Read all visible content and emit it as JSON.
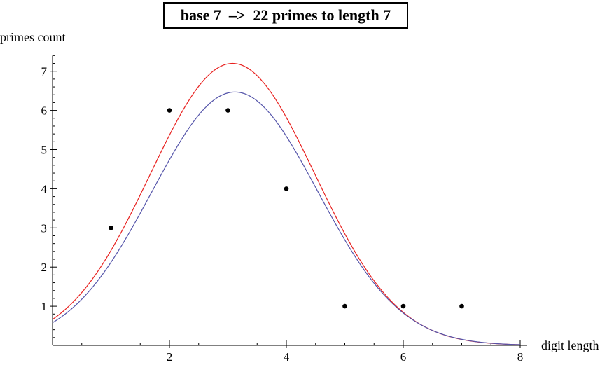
{
  "chart_data": {
    "type": "scatter",
    "title": "base 7  –>  22 primes to length 7",
    "xlabel": "digit length",
    "ylabel": "primes count",
    "xlim": [
      0,
      8
    ],
    "ylim": [
      0,
      7.4
    ],
    "x_ticks": [
      "2",
      "4",
      "6",
      "8"
    ],
    "y_ticks": [
      "1",
      "2",
      "3",
      "4",
      "5",
      "6",
      "7"
    ],
    "grid": false,
    "points": [
      {
        "x": 1,
        "y": 3
      },
      {
        "x": 2,
        "y": 6
      },
      {
        "x": 3,
        "y": 6
      },
      {
        "x": 4,
        "y": 4
      },
      {
        "x": 5,
        "y": 1
      },
      {
        "x": 6,
        "y": 1
      },
      {
        "x": 7,
        "y": 1
      }
    ],
    "curves": [
      {
        "color": "#e8211f",
        "peak_x": 3.08,
        "peak_y": 7.2,
        "sigma": 1.41
      },
      {
        "color": "#5555aa",
        "peak_x": 3.12,
        "peak_y": 6.47,
        "sigma": 1.42
      }
    ]
  }
}
